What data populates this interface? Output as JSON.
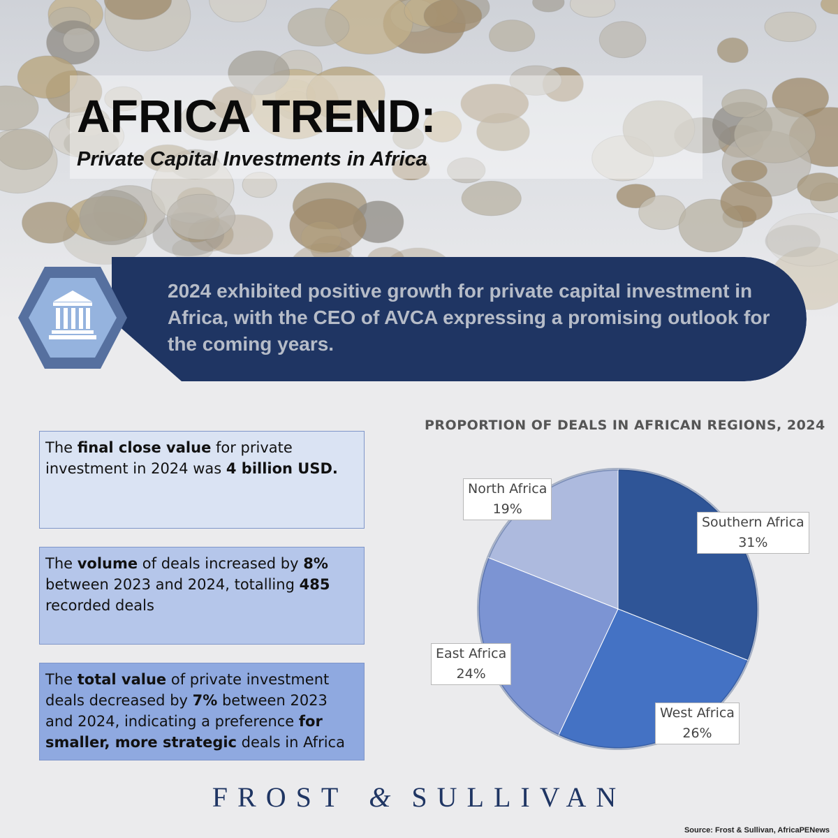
{
  "header": {
    "title": "AFRICA TREND:",
    "subtitle": "Private Capital Investments in Africa"
  },
  "banner": {
    "icon": "bank-building-icon",
    "text": "2024 exhibited positive growth for private capital investment in Africa, with the CEO of AVCA expressing a promising outlook for the coming years."
  },
  "facts": [
    {
      "parts": [
        {
          "text": "The ",
          "bold": false
        },
        {
          "text": "final close value",
          "bold": true
        },
        {
          "text": " for private investment in 2024 was ",
          "bold": false
        },
        {
          "text": "4 billion USD.",
          "bold": true
        }
      ]
    },
    {
      "parts": [
        {
          "text": "The ",
          "bold": false
        },
        {
          "text": "volume",
          "bold": true
        },
        {
          "text": " of deals increased by ",
          "bold": false
        },
        {
          "text": "8%",
          "bold": true
        },
        {
          "text": " between 2023 and 2024, totalling ",
          "bold": false
        },
        {
          "text": "485",
          "bold": true
        },
        {
          "text": " recorded deals",
          "bold": false
        }
      ]
    },
    {
      "parts": [
        {
          "text": "The ",
          "bold": false
        },
        {
          "text": "total value",
          "bold": true
        },
        {
          "text": " of private investment deals decreased by ",
          "bold": false
        },
        {
          "text": "7%",
          "bold": true
        },
        {
          "text": " between 2023 and 2024, indicating a preference ",
          "bold": false
        },
        {
          "text": "for smaller, more strategic",
          "bold": true
        },
        {
          "text": " deals in Africa",
          "bold": false
        }
      ]
    }
  ],
  "chart_data": {
    "type": "pie",
    "title": "PROPORTION OF DEALS IN AFRICAN REGIONS, 2024",
    "slices": [
      {
        "label": "Southern Africa",
        "value": 31,
        "display": "31%",
        "color": "#2f5597"
      },
      {
        "label": "West Africa",
        "value": 26,
        "display": "26%",
        "color": "#4472c4"
      },
      {
        "label": "East Africa",
        "value": 24,
        "display": "24%",
        "color": "#7c94d3"
      },
      {
        "label": "North Africa",
        "value": 19,
        "display": "19%",
        "color": "#adbade"
      }
    ]
  },
  "footer": {
    "brand_left": "FROST",
    "brand_amp": "&",
    "brand_right": "SULLIVAN",
    "source": "Source: Frost & Sullivan, AfricaPENews"
  }
}
